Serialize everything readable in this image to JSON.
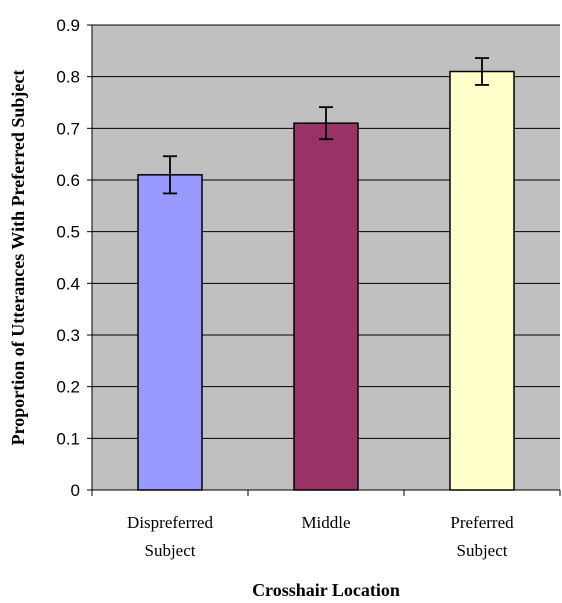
{
  "chart_data": {
    "type": "bar",
    "title": "",
    "xlabel": "Crosshair Location",
    "ylabel": "Proportion of Utterances With Preferred Subject",
    "categories": [
      [
        "Dispreferred",
        "Subject"
      ],
      [
        "Middle"
      ],
      [
        "Preferred",
        "Subject"
      ]
    ],
    "values": [
      0.61,
      0.71,
      0.81
    ],
    "error_low": [
      0.574,
      0.679,
      0.784
    ],
    "error_high": [
      0.646,
      0.741,
      0.836
    ],
    "ylim": [
      0,
      0.9
    ],
    "yticks": [
      0,
      0.1,
      0.2,
      0.3,
      0.4,
      0.5,
      0.6,
      0.7,
      0.8,
      0.9
    ],
    "bar_colors": [
      "#9999ff",
      "#993366",
      "#ffffcc"
    ],
    "plot_background": "#c0c0c0",
    "grid": true,
    "legend": "none"
  }
}
